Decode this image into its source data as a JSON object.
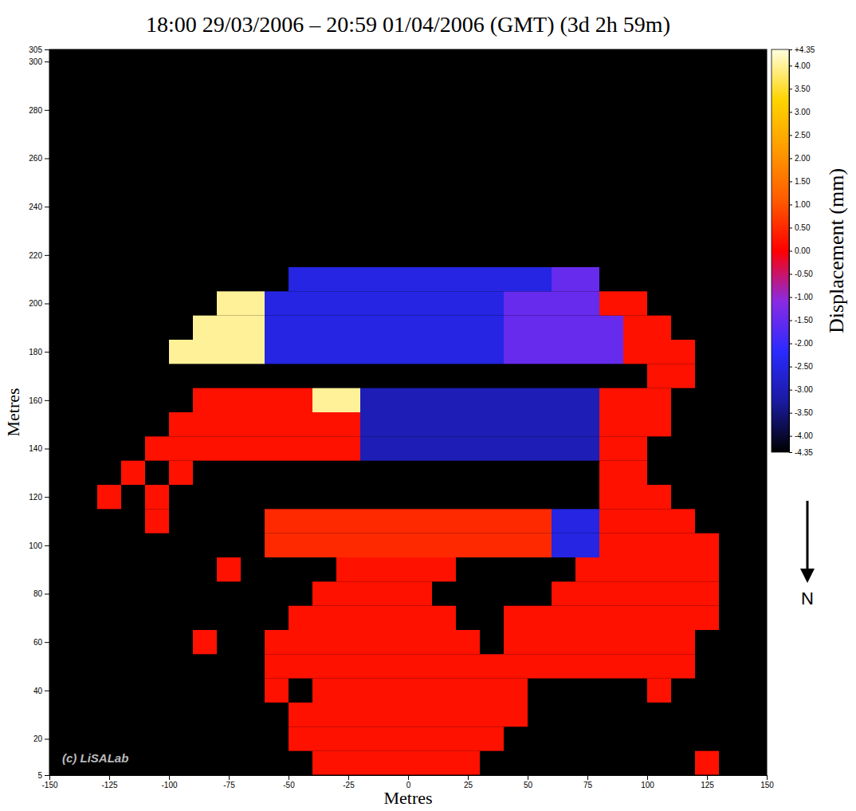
{
  "chart_data": {
    "type": "heatmap",
    "title": "18:00 29/03/2006 – 20:59 01/04/2006 (GMT) (3d 2h 59m)",
    "x_label": "Metres",
    "y_label": "Metres",
    "xlim": [
      -150,
      150
    ],
    "xticks": [
      -150,
      -125,
      -100,
      -75,
      -50,
      -25,
      0,
      25,
      50,
      75,
      100,
      125,
      150
    ],
    "ylim": [
      5,
      305
    ],
    "yticks": [
      5,
      20,
      40,
      60,
      80,
      100,
      120,
      140,
      160,
      180,
      200,
      220,
      240,
      260,
      280,
      300,
      305
    ],
    "x": [
      -145,
      -135,
      -125,
      -115,
      -105,
      -95,
      -85,
      -75,
      -65,
      -55,
      -45,
      -35,
      -25,
      -15,
      -5,
      5,
      15,
      25,
      35,
      45,
      55,
      65,
      75,
      85,
      95,
      105,
      115,
      125,
      135,
      145
    ],
    "y": [
      10,
      20,
      30,
      40,
      50,
      60,
      70,
      80,
      90,
      100,
      110,
      120,
      130,
      140,
      150,
      160,
      170,
      180,
      190,
      200,
      210
    ],
    "cells": [
      [
        null,
        null,
        null,
        null,
        null,
        null,
        null,
        null,
        null,
        null,
        null,
        0.2,
        0.2,
        0.2,
        0.2,
        0.2,
        0.2,
        0.2,
        null,
        null,
        null,
        null,
        null,
        null,
        null,
        null,
        null,
        0.2,
        null,
        null
      ],
      [
        null,
        null,
        null,
        null,
        null,
        null,
        null,
        null,
        null,
        null,
        0.2,
        0.2,
        0.2,
        0.2,
        0.2,
        0.2,
        0.2,
        0.2,
        0.2,
        null,
        null,
        null,
        null,
        null,
        null,
        null,
        null,
        null,
        null,
        null
      ],
      [
        null,
        null,
        null,
        null,
        null,
        null,
        null,
        null,
        null,
        null,
        0.2,
        0.2,
        0.2,
        0.2,
        0.2,
        0.2,
        0.2,
        0.2,
        0.2,
        0.2,
        null,
        null,
        null,
        null,
        null,
        null,
        null,
        null,
        null,
        null
      ],
      [
        null,
        null,
        null,
        null,
        null,
        null,
        null,
        null,
        null,
        0.2,
        null,
        0.2,
        0.2,
        0.2,
        0.2,
        0.2,
        0.2,
        0.2,
        0.2,
        0.2,
        null,
        null,
        null,
        null,
        null,
        0.2,
        null,
        null,
        null,
        null
      ],
      [
        null,
        null,
        null,
        null,
        null,
        null,
        null,
        null,
        null,
        0.2,
        0.2,
        0.2,
        0.2,
        0.2,
        0.2,
        0.2,
        0.2,
        0.2,
        0.2,
        0.2,
        0.2,
        0.2,
        0.2,
        0.2,
        0.2,
        0.2,
        0.2,
        null,
        null,
        null
      ],
      [
        null,
        null,
        null,
        null,
        null,
        null,
        0.2,
        null,
        null,
        0.2,
        0.2,
        0.2,
        0.2,
        0.2,
        0.2,
        0.2,
        0.2,
        0.2,
        null,
        0.2,
        0.2,
        0.2,
        0.2,
        0.2,
        0.2,
        0.2,
        0.2,
        null,
        null,
        null
      ],
      [
        null,
        null,
        null,
        null,
        null,
        null,
        null,
        null,
        null,
        null,
        0.2,
        0.2,
        0.2,
        0.2,
        0.2,
        0.2,
        0.2,
        null,
        null,
        0.2,
        0.2,
        0.2,
        0.2,
        0.2,
        0.2,
        0.2,
        0.2,
        0.2,
        null,
        null
      ],
      [
        null,
        null,
        null,
        null,
        null,
        null,
        null,
        null,
        null,
        null,
        null,
        0.2,
        0.2,
        0.2,
        0.2,
        0.2,
        null,
        null,
        null,
        null,
        null,
        0.2,
        0.2,
        0.2,
        0.2,
        0.2,
        0.2,
        0.2,
        null,
        null
      ],
      [
        null,
        null,
        null,
        null,
        null,
        null,
        null,
        0.2,
        null,
        null,
        null,
        null,
        0.2,
        0.2,
        0.2,
        0.2,
        0.2,
        null,
        null,
        null,
        null,
        null,
        0.2,
        0.2,
        0.2,
        0.2,
        0.2,
        0.2,
        null,
        null
      ],
      [
        null,
        null,
        null,
        null,
        null,
        null,
        null,
        null,
        null,
        0.5,
        0.5,
        0.5,
        0.5,
        0.5,
        0.5,
        0.5,
        0.5,
        0.5,
        0.5,
        0.5,
        0.5,
        -2.5,
        -2.5,
        0.2,
        0.2,
        0.2,
        0.2,
        0.2,
        null,
        null
      ],
      [
        null,
        null,
        null,
        null,
        0.2,
        null,
        null,
        null,
        null,
        0.5,
        0.5,
        0.5,
        0.5,
        0.5,
        0.5,
        0.5,
        0.5,
        0.5,
        0.5,
        0.5,
        0.5,
        -2.5,
        -2.5,
        0.2,
        0.2,
        0.2,
        0.2,
        null,
        null,
        null
      ],
      [
        null,
        null,
        0.2,
        null,
        0.2,
        null,
        null,
        null,
        null,
        null,
        null,
        null,
        null,
        null,
        null,
        null,
        null,
        null,
        null,
        null,
        null,
        null,
        null,
        0.2,
        0.2,
        0.2,
        null,
        null,
        null,
        null
      ],
      [
        null,
        null,
        null,
        0.2,
        null,
        0.2,
        null,
        null,
        null,
        null,
        null,
        null,
        null,
        null,
        null,
        null,
        null,
        null,
        null,
        null,
        null,
        null,
        null,
        0.2,
        0.2,
        null,
        null,
        null,
        null,
        null
      ],
      [
        null,
        null,
        null,
        null,
        0.2,
        0.2,
        0.2,
        0.2,
        0.2,
        0.2,
        0.2,
        0.2,
        0.2,
        -3,
        -3,
        -3,
        -3,
        -3,
        -3,
        -3,
        -3,
        -3,
        -3,
        0.2,
        0.2,
        null,
        null,
        null,
        null,
        null
      ],
      [
        null,
        null,
        null,
        null,
        null,
        0.2,
        0.2,
        0.2,
        0.2,
        0.2,
        0.2,
        0.2,
        0.2,
        -3,
        -3,
        -3,
        -3,
        -3,
        -3,
        -3,
        -3,
        -3,
        -3,
        0.2,
        0.2,
        0.2,
        null,
        null,
        null,
        null
      ],
      [
        null,
        null,
        null,
        null,
        null,
        null,
        0.2,
        0.2,
        0.2,
        0.2,
        0.2,
        4,
        4,
        -3,
        -3,
        -3,
        -3,
        -3,
        -3,
        -3,
        -3,
        -3,
        -3,
        0.2,
        0.2,
        0.2,
        null,
        null,
        null,
        null
      ],
      [
        null,
        null,
        null,
        null,
        null,
        null,
        null,
        null,
        null,
        null,
        null,
        null,
        null,
        null,
        null,
        null,
        null,
        null,
        null,
        null,
        null,
        null,
        null,
        null,
        null,
        0.2,
        0.2,
        null,
        null,
        null
      ],
      [
        null,
        null,
        null,
        null,
        null,
        4,
        4,
        4,
        4,
        -2.5,
        -2.5,
        -2.5,
        -2.5,
        -2.5,
        -2.5,
        -2.5,
        -2.5,
        -2.5,
        -2.5,
        -1.5,
        -1.5,
        -1.5,
        -1.5,
        -1.5,
        0.2,
        0.2,
        0.2,
        null,
        null,
        null
      ],
      [
        null,
        null,
        null,
        null,
        null,
        null,
        4,
        4,
        4,
        -2.5,
        -2.5,
        -2.5,
        -2.5,
        -2.5,
        -2.5,
        -2.5,
        -2.5,
        -2.5,
        -2.5,
        -1.5,
        -1.5,
        -1.5,
        -1.5,
        -1.5,
        0.2,
        0.2,
        null,
        null,
        null,
        null
      ],
      [
        null,
        null,
        null,
        null,
        null,
        null,
        null,
        4,
        4,
        -2.5,
        -2.5,
        -2.5,
        -2.5,
        -2.5,
        -2.5,
        -2.5,
        -2.5,
        -2.5,
        -2.5,
        -1.5,
        -1.5,
        -1.5,
        -1.5,
        0.2,
        0.2,
        null,
        null,
        null,
        null,
        null
      ],
      [
        null,
        null,
        null,
        null,
        null,
        null,
        null,
        null,
        null,
        null,
        -2.5,
        -2.5,
        -2.5,
        -2.5,
        -2.5,
        -2.5,
        -2.5,
        -2.5,
        -2.5,
        -2.5,
        -2.5,
        -1.5,
        -1.5,
        null,
        null,
        null,
        null,
        null,
        null,
        null
      ]
    ],
    "colorbar": {
      "title": "Displacement (mm)",
      "range": [
        -4.35,
        4.35
      ],
      "colors": [
        "#000000",
        "#1a1aa0",
        "#2a2aff",
        "#8a2be2",
        "#ff0000",
        "#ff5a00",
        "#ff9a00",
        "#ffd400",
        "#ffffe0"
      ],
      "ticks": [
        {
          "value": 4.35,
          "label": "+4.35"
        },
        {
          "value": 4,
          "label": "4.00"
        },
        {
          "value": 3.5,
          "label": "3.50"
        },
        {
          "value": 3,
          "label": "3.00"
        },
        {
          "value": 2.5,
          "label": "2.50"
        },
        {
          "value": 2,
          "label": "2.00"
        },
        {
          "value": 1.5,
          "label": "1.50"
        },
        {
          "value": 1,
          "label": "1.00"
        },
        {
          "value": 0.5,
          "label": "0.50"
        },
        {
          "value": 0,
          "label": "0.00"
        },
        {
          "value": -0.5,
          "label": "-0.50"
        },
        {
          "value": -1,
          "label": "-1.00"
        },
        {
          "value": -1.5,
          "label": "-1.50"
        },
        {
          "value": -2,
          "label": "-2.00"
        },
        {
          "value": -2.5,
          "label": "-2.50"
        },
        {
          "value": -3,
          "label": "-3.00"
        },
        {
          "value": -3.5,
          "label": "-3.50"
        },
        {
          "value": -4,
          "label": "-4.00"
        },
        {
          "value": -4.35,
          "label": "-4.35"
        }
      ]
    },
    "annotations": [
      {
        "text": "(c) LiSALab"
      },
      {
        "text": "N"
      }
    ]
  }
}
